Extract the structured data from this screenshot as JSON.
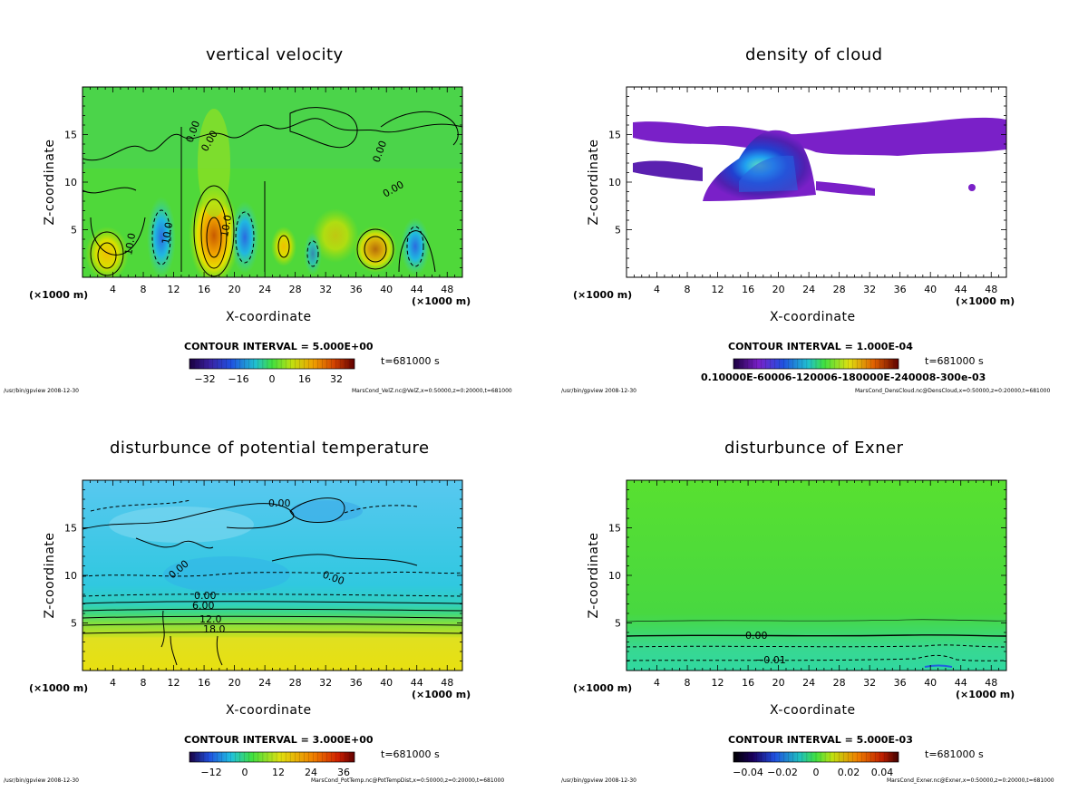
{
  "footer_left": "/usr/bin/gpview  2008-12-30",
  "chart_data": [
    {
      "type": "heatmap",
      "title": "vertical velocity",
      "xlabel": "X-coordinate",
      "ylabel": "Z-coordinate",
      "x_unit": "(×1000 m)",
      "xticks": [
        4,
        8,
        12,
        16,
        20,
        24,
        28,
        32,
        36,
        40,
        44,
        48
      ],
      "yticks": [
        5,
        10,
        15
      ],
      "xlim": [
        0,
        50
      ],
      "ylim": [
        0,
        20
      ],
      "contour_interval": "CONTOUR INTERVAL = 5.000E+00",
      "contour_labels": [
        "0.00",
        "0.00",
        "0.00",
        "0.00",
        "10.0",
        "10.0",
        "10.0"
      ],
      "colorbar_ticks": [
        "−32",
        "−16",
        "0",
        "16",
        "32"
      ],
      "time": "t=681000 s",
      "footer_right": "MarsCond_VelZ.nc@VelZ,x=0:50000,z=0:20000,t=681000",
      "features": [
        {
          "kind": "updraft",
          "x": 17.2,
          "z": 4.5,
          "value": 32
        },
        {
          "kind": "updraft",
          "x": 38.5,
          "z": 3.0,
          "value": 20
        },
        {
          "kind": "updraft",
          "x": 3.0,
          "z": 3.0,
          "value": 15
        },
        {
          "kind": "updraft",
          "x": 25.5,
          "z": 3.0,
          "value": 12
        },
        {
          "kind": "downdraft",
          "x": 10.5,
          "z": 5.0,
          "value": -15
        },
        {
          "kind": "downdraft",
          "x": 21.0,
          "z": 4.5,
          "value": -15
        },
        {
          "kind": "downdraft",
          "x": 44.0,
          "z": 3.5,
          "value": -12
        }
      ]
    },
    {
      "type": "heatmap",
      "title": "density of cloud",
      "xlabel": "X-coordinate",
      "ylabel": "Z-coordinate",
      "x_unit": "(×1000 m)",
      "xticks": [
        4,
        8,
        12,
        16,
        20,
        24,
        28,
        32,
        36,
        40,
        44,
        48
      ],
      "yticks": [
        5,
        10,
        15
      ],
      "xlim": [
        0,
        50
      ],
      "ylim": [
        0,
        20
      ],
      "contour_interval": "CONTOUR INTERVAL = 1.000E-04",
      "colorbar_ticks": [
        "0.10000E-60006-120006-180000E-240008-300e-03"
      ],
      "time": "t=681000 s",
      "footer_right": "MarsCond_DensCloud.nc@DensCloud,x=0:50000,z=0:20000,t=681000",
      "regions": [
        {
          "kind": "thin cloud layer",
          "x": [
            0,
            50
          ],
          "z": [
            12.5,
            16.5
          ]
        },
        {
          "kind": "dense cloud core",
          "x": [
            16,
            23
          ],
          "z": [
            9,
            15.5
          ],
          "peak": 0.0003
        }
      ]
    },
    {
      "type": "heatmap",
      "title": "disturbunce of potential temperature",
      "xlabel": "X-coordinate",
      "ylabel": "Z-coordinate",
      "x_unit": "(×1000 m)",
      "xticks": [
        4,
        8,
        12,
        16,
        20,
        24,
        28,
        32,
        36,
        40,
        44,
        48
      ],
      "yticks": [
        5,
        10,
        15
      ],
      "xlim": [
        0,
        50
      ],
      "ylim": [
        0,
        20
      ],
      "contour_interval": "CONTOUR INTERVAL = 3.000E+00",
      "contour_labels": [
        "0.00",
        "0.00",
        "0.00",
        "0.00",
        "6.00",
        "12.0",
        "18.0"
      ],
      "colorbar_ticks": [
        "−12",
        "0",
        "12",
        "24",
        "36"
      ],
      "time": "t=681000 s",
      "footer_right": "MarsCond_PotTemp.nc@PotTempDist,x=0:50000,z=0:20000,t=681000",
      "levels": [
        {
          "z": 0,
          "value": 24
        },
        {
          "z": 3.5,
          "value": 21
        },
        {
          "z": 5.0,
          "value": 15
        },
        {
          "z": 6.0,
          "value": 9
        },
        {
          "z": 7.0,
          "value": 3
        },
        {
          "z": 9.0,
          "value": -3
        },
        {
          "z": 20,
          "value": -6
        }
      ]
    },
    {
      "type": "heatmap",
      "title": "disturbunce of Exner",
      "xlabel": "X-coordinate",
      "ylabel": "Z-coordinate",
      "x_unit": "(×1000 m)",
      "xticks": [
        4,
        8,
        12,
        16,
        20,
        24,
        28,
        32,
        36,
        40,
        44,
        48
      ],
      "yticks": [
        5,
        10,
        15
      ],
      "xlim": [
        0,
        50
      ],
      "ylim": [
        0,
        20
      ],
      "contour_interval": "CONTOUR INTERVAL = 5.000E-03",
      "contour_labels": [
        "0.00",
        "−0.01"
      ],
      "colorbar_ticks": [
        "−0.04",
        "−0.02",
        "0",
        "0.02",
        "0.04"
      ],
      "time": "t=681000 s",
      "footer_right": "MarsCond_Exner.nc@Exner,x=0:50000,z=0:20000,t=681000",
      "levels": [
        {
          "z": 20,
          "value": 0.002
        },
        {
          "z": 5.0,
          "value": 0.0
        },
        {
          "z": 3.5,
          "value": -0.005
        },
        {
          "z": 1.0,
          "value": -0.012
        }
      ]
    }
  ]
}
